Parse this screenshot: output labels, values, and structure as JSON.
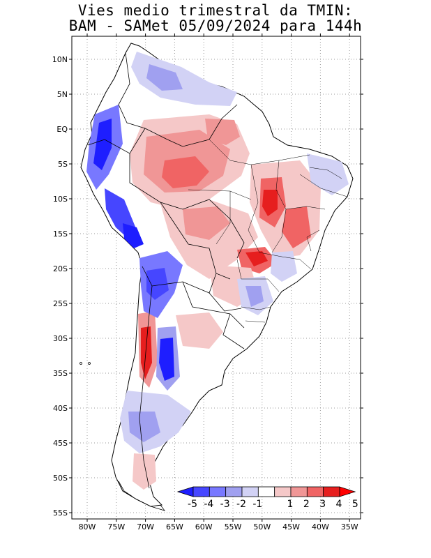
{
  "title_line1": "Vies medio trimestral da TMIN:",
  "title_line2": "BAM - SAMet 05/09/2024  para 144h",
  "lat_labels": [
    "10N",
    "5N",
    "EQ",
    "5S",
    "10S",
    "15S",
    "20S",
    "25S",
    "30S",
    "35S",
    "40S",
    "45S",
    "50S",
    "55S"
  ],
  "lon_labels": [
    "80W",
    "75W",
    "70W",
    "65W",
    "60W",
    "55W",
    "50W",
    "45W",
    "40W",
    "35W"
  ],
  "colorbar": {
    "labels": [
      "-5",
      "-4",
      "-3",
      "-2",
      "-1",
      "1",
      "2",
      "3",
      "4",
      "5"
    ],
    "colors": [
      "#1e1eff",
      "#4646ff",
      "#7878ff",
      "#a0a0f0",
      "#d2d2f5",
      "#ffffff",
      "#f5c8c8",
      "#f09696",
      "#f06464",
      "#e61e1e",
      "#ff0000"
    ]
  },
  "palette": {
    "frame": "#000000",
    "grid": "#999999",
    "coast": "#000000"
  }
}
